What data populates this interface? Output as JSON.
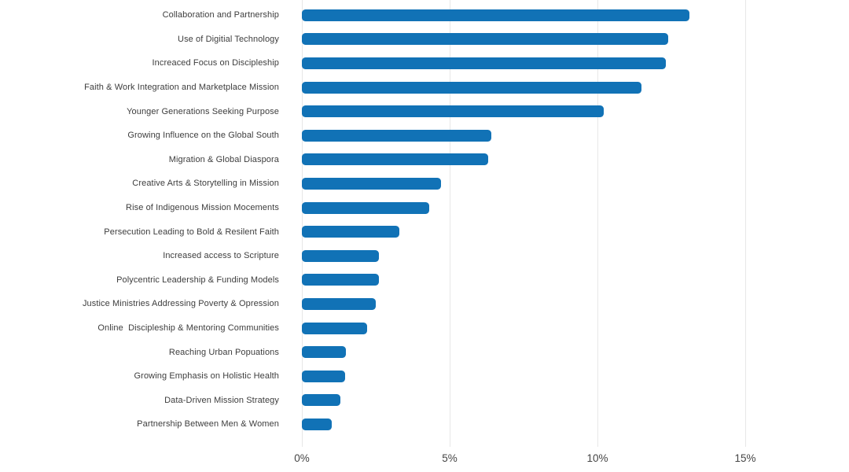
{
  "chart_data": {
    "type": "bar",
    "orientation": "horizontal",
    "title": "",
    "xlabel": "",
    "ylabel": "",
    "unit": "%",
    "categories": [
      "Collaboration and Partnership",
      "Use of Digitial Technology",
      "Increaced Focus on Discipleship",
      "Faith & Work Integration and Marketplace Mission",
      "Younger Generations Seeking Purpose",
      "Growing Influence on the Global South",
      "Migration & Global Diaspora",
      "Creative Arts & Storytelling in Mission",
      "Rise of Indigenous Mission Mocements",
      "Persecution Leading to Bold & Resilent Faith",
      "Increased access to Scripture",
      "Polycentric Leadership & Funding Models",
      "Justice Ministries Addressing Poverty & Opression",
      "Online  Discipleship & Mentoring Communities",
      "Reaching Urban Popuations",
      "Growing Emphasis on Holistic Health",
      "Data-Driven Mission Strategy",
      "Partnership Between Men & Women"
    ],
    "values": [
      13.1,
      12.4,
      12.3,
      11.5,
      10.2,
      6.4,
      6.3,
      4.7,
      4.3,
      3.3,
      2.6,
      2.6,
      2.5,
      2.2,
      1.5,
      1.45,
      1.3,
      1.0
    ],
    "x_ticks": [
      "0%",
      "5%",
      "10%",
      "15%"
    ],
    "x_tick_values": [
      0,
      5,
      10,
      15
    ],
    "xlim": [
      0,
      18.5
    ],
    "grid": "vertical-only",
    "legend": "none",
    "bar_color": "#1172b6",
    "gridline_color": "#e7e7e7",
    "label_color": "#3d3d3d",
    "tick_label_color": "#454545",
    "background_color": "#ffffff"
  }
}
